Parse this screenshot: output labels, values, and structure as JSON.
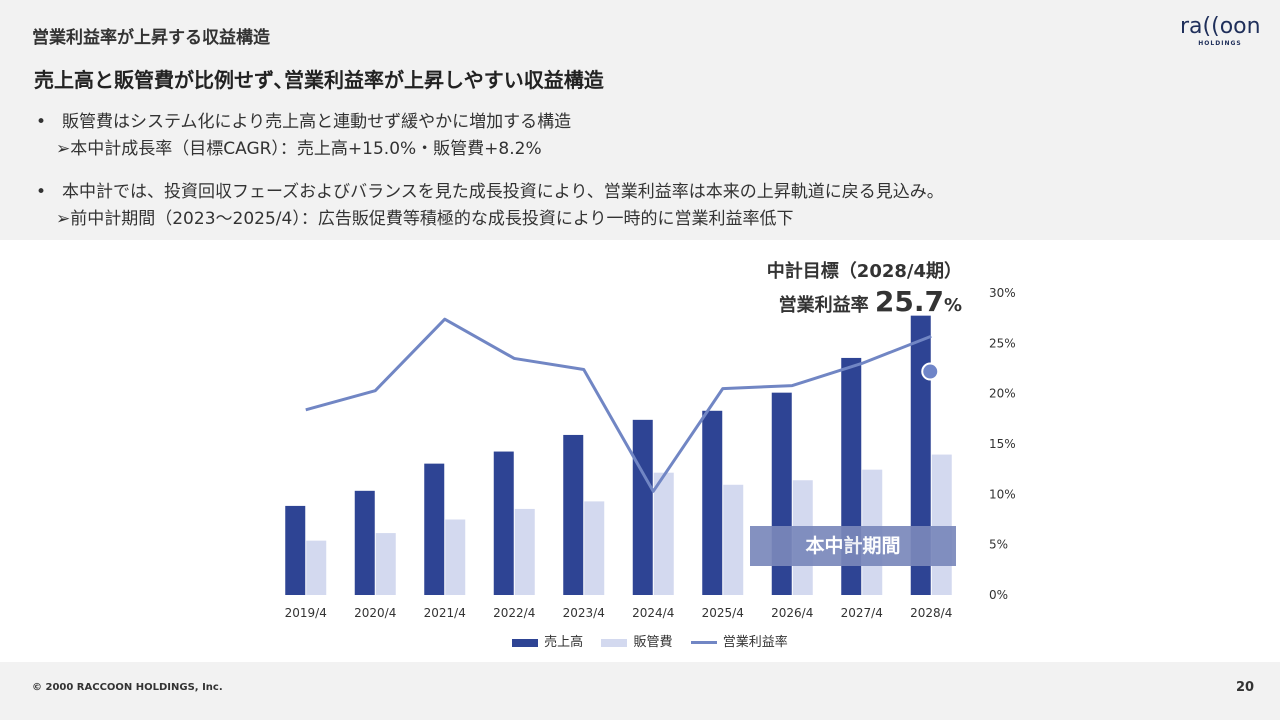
{
  "header": {
    "section_title": "営業利益率が上昇する収益構造",
    "logo_text": "ra((oon",
    "logo_sub": "HOLDINGS"
  },
  "headline": "売上高と販管費が比例せず､営業利益率が上昇しやすい収益構造",
  "bullets": [
    {
      "dot": "•",
      "text": "販管費はシステム化により売上高と連動せず緩やかに増加する構造",
      "sub": "➢本中計成長率（目標CAGR）：売上高+15.0%・販管費+8.2%"
    },
    {
      "dot": "•",
      "text": "本中計では、投資回収フェーズおよびバランスを見た成長投資により、営業利益率は本来の上昇軌道に戻る見込み。",
      "sub": "➢前中計期間（2023〜2025/4）：広告販促費等積極的な成長投資により一時的に営業利益率低下"
    }
  ],
  "target": {
    "line1": "中計目標（2028/4期）",
    "line2_label": "営業利益率",
    "line2_value": "25.7",
    "line2_unit": "%"
  },
  "period_label": "本中計期間",
  "colors": {
    "sales": "#2e4494",
    "sga": "#d3d9ef",
    "margin": "#7186c4",
    "marker": "#6f85c8"
  },
  "chart_data": {
    "type": "bar",
    "categories": [
      "2019/4",
      "2020/4",
      "2021/4",
      "2022/4",
      "2023/4",
      "2024/4",
      "2025/4",
      "2026/4",
      "2027/4",
      "2028/4"
    ],
    "series": [
      {
        "name": "売上高",
        "type": "bar",
        "axis": "primary",
        "values": [
          29.5,
          34.5,
          43.5,
          47.5,
          53,
          58,
          61,
          67,
          78.5,
          92.5
        ]
      },
      {
        "name": "販管費",
        "type": "bar",
        "axis": "primary",
        "values": [
          18,
          20.5,
          25,
          28.5,
          31,
          40.5,
          36.5,
          38,
          41.5,
          46.5
        ]
      },
      {
        "name": "営業利益率",
        "type": "line",
        "axis": "secondary",
        "values": [
          18.4,
          20.3,
          27.4,
          23.5,
          22.4,
          10.3,
          20.5,
          20.8,
          23.0,
          25.7
        ]
      }
    ],
    "primary_ylim": [
      0,
      100
    ],
    "secondary_ylim": [
      0,
      30
    ],
    "secondary_ticks": [
      "0%",
      "5%",
      "10%",
      "15%",
      "20%",
      "25%",
      "30%"
    ],
    "secondary_tick_values": [
      0,
      5,
      10,
      15,
      20,
      25,
      30
    ],
    "highlight_point": 22.2,
    "legend": [
      "売上高",
      "販管費",
      "営業利益率"
    ],
    "legend_position": "bottom",
    "grid": false
  },
  "footer": {
    "copyright": "© 2000 RACCOON HOLDINGS, Inc.",
    "page": "20"
  }
}
